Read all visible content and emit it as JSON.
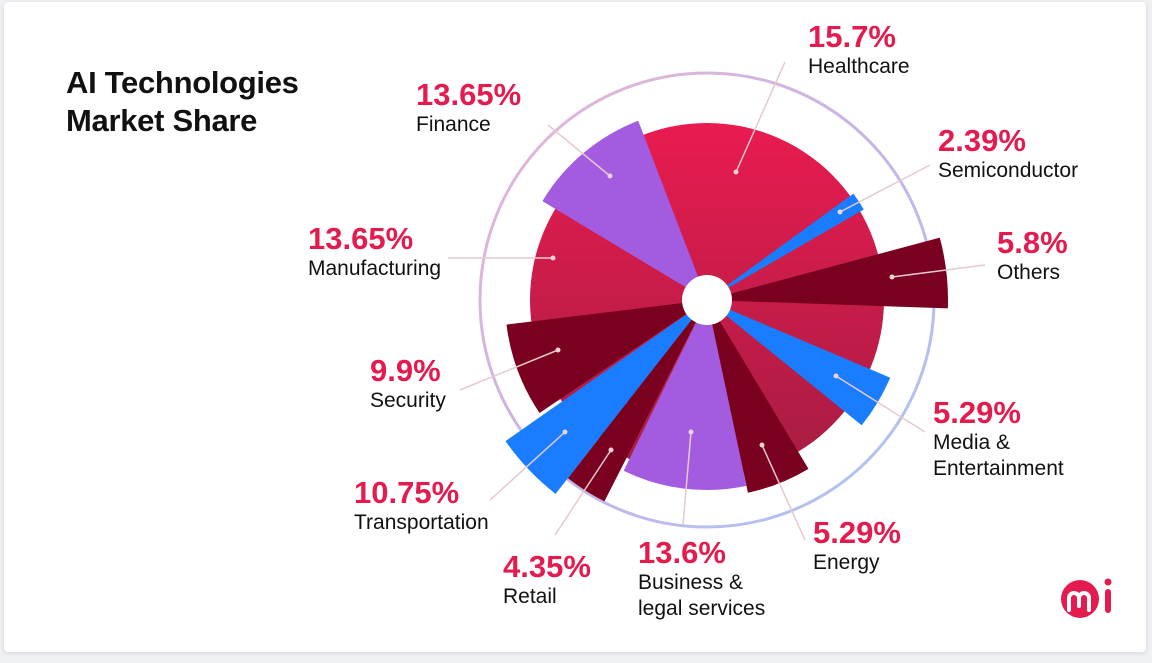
{
  "chart_data": {
    "type": "polar-area",
    "title": "AI Technologies Market Share",
    "categories": [
      "Healthcare",
      "Semiconductor",
      "Others",
      "Media & Entertainment",
      "Energy",
      "Business & legal services",
      "Retail",
      "Transportation",
      "Security",
      "Manufacturing",
      "Finance"
    ],
    "values": [
      15.7,
      2.39,
      5.8,
      5.29,
      5.29,
      13.6,
      4.35,
      10.75,
      9.9,
      13.65,
      13.65
    ],
    "labels": [
      "15.7%",
      "2.39%",
      "5.8%",
      "5.29%",
      "5.29%",
      "13.6%",
      "4.35%",
      "10.75%",
      "9.9%",
      "13.65%",
      "13.65%"
    ],
    "names": [
      "Healthcare",
      "Semiconductor",
      "Others",
      "Media &\nEntertainment",
      "Energy",
      "Business &\nlegal services",
      "Retail",
      "Transportation",
      "Security",
      "Manufacturing",
      "Finance"
    ],
    "colors": {
      "crimson": "#e31b4f",
      "dark": "#7a0020",
      "blue": "#1a7cff",
      "purple": "#a35be0"
    },
    "legend": "none"
  },
  "logo": "mi"
}
